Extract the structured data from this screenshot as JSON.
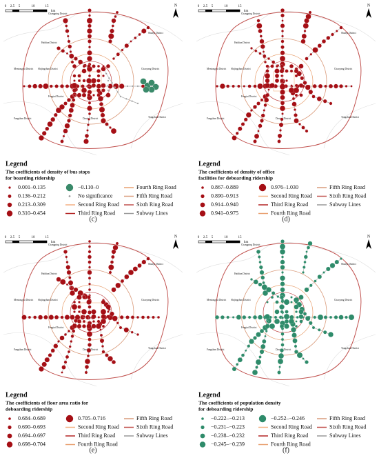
{
  "scale_bar": {
    "labels": [
      "0",
      "2.5",
      "5",
      "10",
      "15"
    ],
    "unit": "km"
  },
  "north": "N",
  "districts": [
    "Changping District",
    "Shunyi District",
    "Haidian District",
    "Mentougou District",
    "Shijingshan District",
    "Chaoyang District",
    "Fengtai District",
    "Tongzhou District",
    "Fangshan District",
    "Daxing District"
  ],
  "panels": [
    {
      "label": "(c)",
      "legend_title": "Legend",
      "subtitle": [
        "The coefficients of density of bus stops",
        "for boarding ridership"
      ],
      "map_color": "#a50f15",
      "entries": [
        {
          "text": "0.001–0.135",
          "symbol": "dot",
          "color": "#a50f15"
        },
        {
          "text": "0.136–0.212",
          "symbol": "dot",
          "color": "#a50f15"
        },
        {
          "text": "0.213–0.309",
          "symbol": "dot",
          "color": "#a50f15"
        },
        {
          "text": "0.310–0.454",
          "symbol": "dot",
          "color": "#a50f15"
        },
        {
          "text": "−0.110–0",
          "symbol": "dot",
          "color": "#3a8a6a"
        },
        {
          "text": "No significance",
          "symbol": "dot",
          "color": "#9a9a9a"
        },
        {
          "text": "Second Ring Road",
          "symbol": "line",
          "color": "#f4b183"
        },
        {
          "text": "Third Ring Road",
          "symbol": "line",
          "color": "#b22222"
        },
        {
          "text": "Fourth Ring Road",
          "symbol": "line",
          "color": "#e8a070"
        },
        {
          "text": "Fifth Ring Road",
          "symbol": "line",
          "color": "#d99a7a"
        },
        {
          "text": "Sixth Ring Road",
          "symbol": "line",
          "color": "#c0504d"
        },
        {
          "text": "Subway Lines",
          "symbol": "line",
          "color": "#999999"
        }
      ]
    },
    {
      "label": "(d)",
      "legend_title": "Legend",
      "subtitle": [
        "The coefficients of density of office",
        "facilities for deboarding ridership"
      ],
      "map_color": "#a50f15",
      "entries": [
        {
          "text": "0.867–0.889",
          "symbol": "dot",
          "color": "#a50f15"
        },
        {
          "text": "0.890–0.913",
          "symbol": "dot",
          "color": "#a50f15"
        },
        {
          "text": "0.914–0.940",
          "symbol": "dot",
          "color": "#a50f15"
        },
        {
          "text": "0.941–0.975",
          "symbol": "dot",
          "color": "#a50f15"
        },
        {
          "text": "0.976–1.030",
          "symbol": "dot",
          "color": "#a50f15"
        },
        {
          "text": "Second Ring Road",
          "symbol": "line",
          "color": "#f4b183"
        },
        {
          "text": "Third Ring Road",
          "symbol": "line",
          "color": "#b22222"
        },
        {
          "text": "Fourth Ring Road",
          "symbol": "line",
          "color": "#e8a070"
        },
        {
          "text": "Fifth Ring Road",
          "symbol": "line",
          "color": "#d99a7a"
        },
        {
          "text": "Sixth Ring Road",
          "symbol": "line",
          "color": "#c0504d"
        },
        {
          "text": "Subway Lines",
          "symbol": "line",
          "color": "#999999"
        }
      ]
    },
    {
      "label": "(e)",
      "legend_title": "Legend",
      "subtitle": [
        "The coefficients of floor area ratio for",
        "deboarding ridership"
      ],
      "map_color": "#a50f15",
      "entries": [
        {
          "text": "0.684–0.689",
          "symbol": "dot",
          "color": "#a50f15"
        },
        {
          "text": "0.690–0.693",
          "symbol": "dot",
          "color": "#a50f15"
        },
        {
          "text": "0.694–0.697",
          "symbol": "dot",
          "color": "#a50f15"
        },
        {
          "text": "0.698–0.704",
          "symbol": "dot",
          "color": "#a50f15"
        },
        {
          "text": "0.705–0.716",
          "symbol": "dot",
          "color": "#a50f15"
        },
        {
          "text": "Second Ring Road",
          "symbol": "line",
          "color": "#f4b183"
        },
        {
          "text": "Third Ring Road",
          "symbol": "line",
          "color": "#b22222"
        },
        {
          "text": "Fourth Ring Road",
          "symbol": "line",
          "color": "#e8a070"
        },
        {
          "text": "Fifth Ring Road",
          "symbol": "line",
          "color": "#d99a7a"
        },
        {
          "text": "Sixth Ring Road",
          "symbol": "line",
          "color": "#c0504d"
        },
        {
          "text": "Subway Lines",
          "symbol": "line",
          "color": "#999999"
        }
      ]
    },
    {
      "label": "(f)",
      "legend_title": "Legend",
      "subtitle": [
        "The coefficients of population density",
        "for deboarding ridership"
      ],
      "map_color": "#2e8b6a",
      "entries": [
        {
          "text": "−0.222–−0.213",
          "symbol": "dot",
          "color": "#2e8b6a"
        },
        {
          "text": "−0.231–−0.223",
          "symbol": "dot",
          "color": "#2e8b6a"
        },
        {
          "text": "−0.238–−0.232",
          "symbol": "dot",
          "color": "#2e8b6a"
        },
        {
          "text": "−0.245–−0.239",
          "symbol": "dot",
          "color": "#2e8b6a"
        },
        {
          "text": "−0.252–−0.246",
          "symbol": "dot",
          "color": "#2e8b6a"
        },
        {
          "text": "Second Ring Road",
          "symbol": "line",
          "color": "#f4b183"
        },
        {
          "text": "Third Ring Road",
          "symbol": "line",
          "color": "#b22222"
        },
        {
          "text": "Fourth Ring Road",
          "symbol": "line",
          "color": "#e8a070"
        },
        {
          "text": "Fifth Ring Road",
          "symbol": "line",
          "color": "#d99a7a"
        },
        {
          "text": "Sixth Ring Road",
          "symbol": "line",
          "color": "#c0504d"
        },
        {
          "text": "Subway Lines",
          "symbol": "line",
          "color": "#999999"
        }
      ]
    }
  ]
}
